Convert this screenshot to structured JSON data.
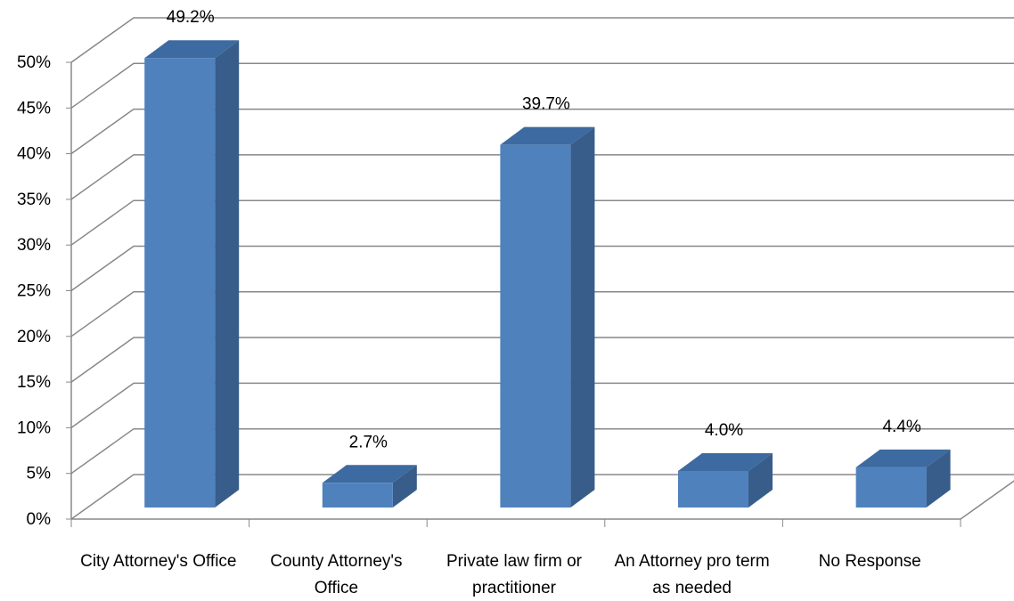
{
  "chart_data": {
    "type": "bar3d",
    "categories": [
      "City Attorney's Office",
      "County Attorney's Office",
      "Private law firm or practitioner",
      "An Attorney pro term as needed",
      "No Response"
    ],
    "values": [
      49.2,
      2.7,
      39.7,
      4.0,
      4.4
    ],
    "value_labels": [
      "49.2%",
      "2.7%",
      "39.7%",
      "4.0%",
      "4.4%"
    ],
    "color": "#4f81bd",
    "ylim": [
      0,
      50
    ],
    "yticks": [
      {
        "value": 0,
        "label": "0%"
      },
      {
        "value": 5,
        "label": "5%"
      },
      {
        "value": 10,
        "label": "10%"
      },
      {
        "value": 15,
        "label": "15%"
      },
      {
        "value": 20,
        "label": "20%"
      },
      {
        "value": 25,
        "label": "25%"
      },
      {
        "value": 30,
        "label": "30%"
      },
      {
        "value": 35,
        "label": "35%"
      },
      {
        "value": 40,
        "label": "40%"
      },
      {
        "value": 45,
        "label": "45%"
      },
      {
        "value": 50,
        "label": "50%"
      }
    ],
    "grid": true
  }
}
